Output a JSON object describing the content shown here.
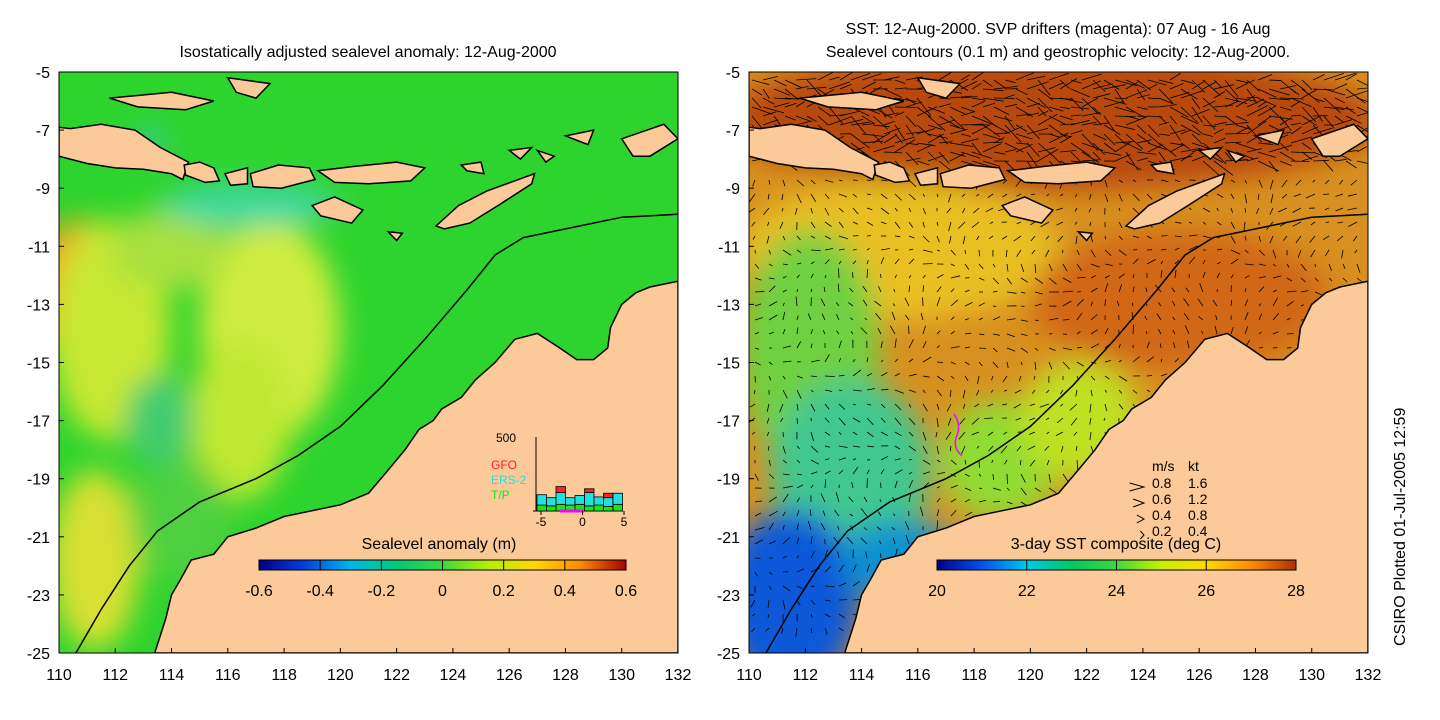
{
  "left_panel": {
    "title": "Isostatically adjusted sealevel anomaly: 12-Aug-2000",
    "colorbar": {
      "label": "Sealevel anomaly (m)",
      "ticks": [
        "-0.6",
        "-0.4",
        "-0.2",
        "0",
        "0.2",
        "0.4",
        "0.6"
      ],
      "range": [
        -0.6,
        0.6
      ],
      "colors": [
        "#00008b",
        "#0040e0",
        "#00b8e8",
        "#00c878",
        "#3fd73f",
        "#b4f000",
        "#ffd700",
        "#ff8c00",
        "#a50000"
      ]
    },
    "inset": {
      "max_label": "500",
      "legend": [
        {
          "name": "GFO",
          "color": "#ff2020"
        },
        {
          "name": "ERS-2",
          "color": "#20e0e0"
        },
        {
          "name": "T/P",
          "color": "#20e020"
        }
      ],
      "x_ticks": [
        "-5",
        "0",
        "5"
      ],
      "bars": [
        {
          "tp": 40,
          "ers": 70,
          "gfo": 0
        },
        {
          "tp": 35,
          "ers": 55,
          "gfo": 0
        },
        {
          "tp": 45,
          "ers": 80,
          "gfo": 40
        },
        {
          "tp": 40,
          "ers": 50,
          "gfo": 0
        },
        {
          "tp": 45,
          "ers": 60,
          "gfo": 0
        },
        {
          "tp": 35,
          "ers": 90,
          "gfo": 25
        },
        {
          "tp": 40,
          "ers": 55,
          "gfo": 0
        },
        {
          "tp": 30,
          "ers": 60,
          "gfo": 30
        },
        {
          "tp": 45,
          "ers": 75,
          "gfo": 0
        }
      ]
    }
  },
  "right_panel": {
    "title_line1": "SST: 12-Aug-2000. SVP drifters (magenta): 07 Aug - 16 Aug",
    "title_line2": "Sealevel contours (0.1 m) and geostrophic velocity: 12-Aug-2000.",
    "colorbar": {
      "label": "3-day SST composite (deg C)",
      "ticks": [
        "20",
        "22",
        "24",
        "26",
        "28"
      ],
      "range": [
        20,
        28
      ],
      "colors": [
        "#00008b",
        "#0050f0",
        "#00c8e8",
        "#00c864",
        "#3fd73f",
        "#c8f000",
        "#ffd700",
        "#ff8c00",
        "#b03000"
      ]
    },
    "velocity_legend": {
      "header_ms": "m/s",
      "header_kt": "kt",
      "rows": [
        {
          "ms": "0.8",
          "kt": "1.6"
        },
        {
          "ms": "0.6",
          "kt": "1.2"
        },
        {
          "ms": "0.4",
          "kt": "0.8"
        },
        {
          "ms": "0.2",
          "kt": "0.4"
        }
      ]
    }
  },
  "axes": {
    "x_ticks": [
      "110",
      "112",
      "114",
      "116",
      "118",
      "120",
      "122",
      "124",
      "126",
      "128",
      "130",
      "132"
    ],
    "y_ticks": [
      "-5",
      "-7",
      "-9",
      "-11",
      "-13",
      "-15",
      "-17",
      "-19",
      "-21",
      "-23",
      "-25"
    ],
    "lon_range": [
      110,
      132
    ],
    "lat_range": [
      -25,
      -5
    ]
  },
  "credit": "CSIRO Plotted 01-Jul-2005 12:59",
  "map_colors": {
    "land": "#fcc998",
    "ocean_base": "#2ed42e",
    "coast": "#000000"
  }
}
